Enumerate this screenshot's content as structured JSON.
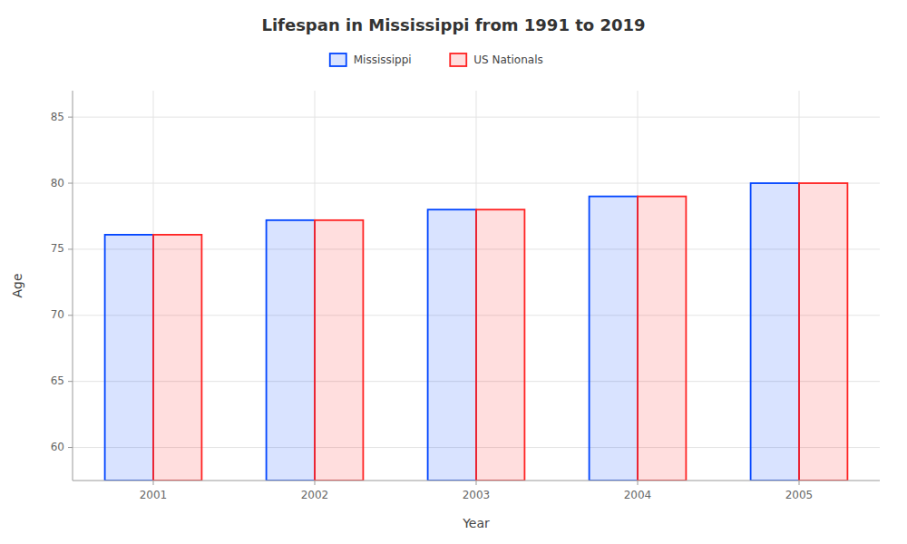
{
  "chart_data": {
    "type": "bar",
    "title": "Lifespan in Mississippi from 1991 to 2019",
    "x_label": "Year",
    "y_label": "Age",
    "categories": [
      "2001",
      "2002",
      "2003",
      "2004",
      "2005"
    ],
    "series": [
      {
        "name": "Mississippi",
        "color": "#0044ff",
        "values": [
          76.1,
          77.2,
          78.0,
          79.0,
          80.0
        ]
      },
      {
        "name": "US Nationals",
        "color": "#ff2222",
        "values": [
          76.1,
          77.2,
          78.0,
          79.0,
          80.0
        ]
      }
    ],
    "ylim": [
      57.5,
      87
    ],
    "yticks": [
      60,
      65,
      70,
      75,
      80,
      85
    ],
    "grid": true,
    "legend": "top"
  }
}
